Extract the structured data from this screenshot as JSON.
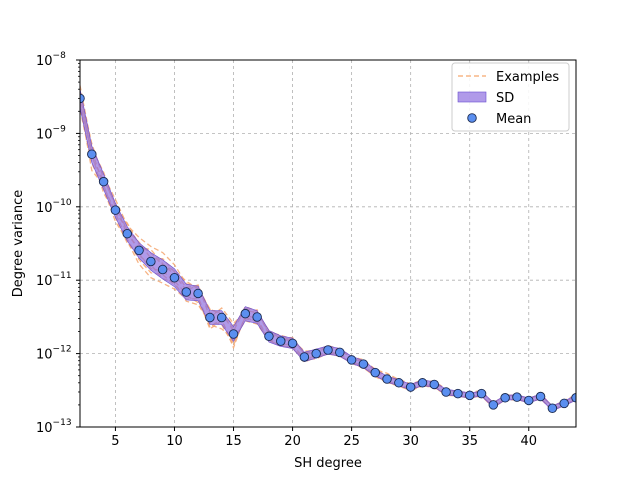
{
  "chart_data": {
    "type": "line",
    "xlabel": "SH degree",
    "ylabel": "Degree variance",
    "xlim": [
      2,
      44
    ],
    "ylim": [
      1e-13,
      1e-08
    ],
    "yscale": "log",
    "grid": true,
    "legend_position": "top-right",
    "x_ticks": [
      5,
      10,
      15,
      20,
      25,
      30,
      35,
      40
    ],
    "y_ticks": [
      {
        "value": 1e-13,
        "base": "10",
        "exp": "−13"
      },
      {
        "value": 1e-12,
        "base": "10",
        "exp": "−12"
      },
      {
        "value": 1e-11,
        "base": "10",
        "exp": "−11"
      },
      {
        "value": 1e-10,
        "base": "10",
        "exp": "−10"
      },
      {
        "value": 1e-09,
        "base": "10",
        "exp": "−9"
      },
      {
        "value": 1e-08,
        "base": "10",
        "exp": "−8"
      }
    ],
    "legend": [
      {
        "label": "Examples",
        "kind": "dashed-line"
      },
      {
        "label": "SD",
        "kind": "band"
      },
      {
        "label": "Mean",
        "kind": "marker"
      }
    ],
    "colors": {
      "examples": "#f5a66e",
      "sd_fill": "#8f6fe0",
      "sd_edge": "#6a4fd0",
      "mean_face": "#5b8ff0",
      "mean_edge": "#1a2a50",
      "grid": "#b0b0b0"
    },
    "x": [
      2,
      3,
      4,
      5,
      6,
      7,
      8,
      9,
      10,
      11,
      12,
      13,
      14,
      15,
      16,
      17,
      18,
      19,
      20,
      21,
      22,
      23,
      24,
      25,
      26,
      27,
      28,
      29,
      30,
      31,
      32,
      33,
      34,
      35,
      36,
      37,
      38,
      39,
      40,
      41,
      42,
      43,
      44
    ],
    "mean": [
      3e-09,
      5.2e-10,
      2.2e-10,
      9e-11,
      4.3e-11,
      2.55e-11,
      1.8e-11,
      1.4e-11,
      1.08e-11,
      6.9e-12,
      6.6e-12,
      3.1e-12,
      3.1e-12,
      1.85e-12,
      3.5e-12,
      3.15e-12,
      1.72e-12,
      1.48e-12,
      1.38e-12,
      9e-13,
      1e-12,
      1.12e-12,
      1.04e-12,
      8.2e-13,
      7.2e-13,
      5.5e-13,
      4.5e-13,
      4e-13,
      3.5e-13,
      4e-13,
      3.8e-13,
      3e-13,
      2.85e-13,
      2.7e-13,
      2.85e-13,
      2e-13,
      2.5e-13,
      2.55e-13,
      2.3e-13,
      2.6e-13,
      1.8e-13,
      2.1e-13,
      2.5e-13
    ],
    "sd_factor": [
      1.35,
      1.3,
      1.28,
      1.25,
      1.25,
      1.27,
      1.32,
      1.35,
      1.33,
      1.28,
      1.26,
      1.24,
      1.24,
      1.26,
      1.25,
      1.22,
      1.2,
      1.18,
      1.18,
      1.16,
      1.15,
      1.14,
      1.13,
      1.12,
      1.12,
      1.1,
      1.1,
      1.1,
      1.09,
      1.09,
      1.09,
      1.09,
      1.09,
      1.08,
      1.08,
      1.08,
      1.08,
      1.08,
      1.08,
      1.08,
      1.08,
      1.08,
      1.08
    ],
    "examples_mult": [
      [
        1.5,
        1.3,
        1.2,
        1.4,
        1.3,
        1.5,
        1.6,
        1.7,
        1.5,
        1.3,
        1.2,
        1.3,
        1.1,
        1.2,
        1.25,
        1.2,
        1.15,
        1.1,
        1.2,
        1.1,
        1.15,
        1.1,
        1.05,
        1.1,
        1.15,
        1.1,
        1.2,
        1.1,
        1.1,
        1.05,
        1.1,
        1.1,
        1.05,
        1.1,
        1.1,
        1.05,
        1.1,
        1.05,
        1.05,
        1.1,
        1.05,
        1.1,
        1.1
      ],
      [
        0.7,
        0.75,
        0.8,
        0.7,
        0.8,
        0.65,
        0.6,
        0.65,
        0.7,
        0.8,
        0.85,
        0.7,
        0.9,
        0.75,
        0.85,
        0.9,
        0.85,
        0.9,
        0.85,
        0.9,
        0.9,
        0.9,
        0.92,
        0.9,
        0.9,
        0.92,
        0.9,
        0.9,
        0.93,
        0.92,
        0.9,
        0.92,
        0.93,
        0.92,
        0.93,
        0.95,
        0.92,
        0.93,
        0.94,
        0.93,
        0.95,
        0.94,
        0.94
      ],
      [
        1.2,
        1.4,
        1.1,
        1.2,
        1.1,
        1.3,
        1.1,
        1.4,
        1.2,
        1.15,
        1.3,
        1.15,
        1.2,
        1.3,
        1.1,
        1.15,
        1.2,
        1.15,
        1.1,
        1.2,
        1.1,
        1.15,
        1.1,
        1.12,
        1.1,
        1.1,
        1.08,
        1.12,
        1.1,
        1.08,
        1.1,
        1.06,
        1.08,
        1.06,
        1.07,
        1.06,
        1.07,
        1.06,
        1.05,
        1.06,
        1.05,
        1.05,
        1.05
      ],
      [
        0.85,
        0.6,
        0.9,
        0.8,
        0.75,
        0.85,
        0.9,
        0.75,
        0.85,
        0.75,
        0.7,
        0.85,
        0.8,
        0.7,
        0.9,
        0.85,
        0.9,
        0.85,
        0.9,
        0.85,
        0.9,
        0.88,
        0.9,
        0.9,
        0.88,
        0.9,
        0.92,
        0.9,
        0.9,
        0.93,
        0.9,
        0.93,
        0.92,
        0.93,
        0.92,
        0.93,
        0.94,
        0.93,
        0.95,
        0.94,
        0.93,
        0.95,
        0.95
      ],
      [
        1.1,
        1.2,
        1.35,
        1.1,
        1.4,
        1.2,
        1.3,
        1.15,
        1.25,
        1.4,
        1.15,
        1.3,
        1.15,
        1.1,
        1.2,
        1.1,
        1.15,
        1.2,
        1.15,
        1.1,
        1.12,
        1.1,
        1.12,
        1.08,
        1.1,
        1.12,
        1.1,
        1.06,
        1.08,
        1.1,
        1.06,
        1.08,
        1.06,
        1.08,
        1.05,
        1.07,
        1.05,
        1.06,
        1.06,
        1.05,
        1.07,
        1.05,
        1.06
      ],
      [
        0.9,
        1.0,
        0.7,
        0.9,
        0.85,
        0.75,
        0.7,
        0.85,
        0.8,
        0.9,
        0.75,
        0.8,
        0.7,
        0.85,
        0.8,
        0.8,
        0.88,
        0.85,
        0.88,
        0.92,
        0.85,
        0.9,
        0.88,
        0.92,
        0.9,
        0.88,
        0.9,
        0.92,
        0.9,
        0.9,
        0.93,
        0.9,
        0.93,
        0.92,
        0.94,
        0.92,
        0.94,
        0.93,
        0.94,
        0.95,
        0.94,
        0.93,
        0.95
      ],
      [
        1.3,
        0.9,
        1.05,
        1.25,
        0.95,
        1.1,
        1.45,
        1.2,
        1.1,
        1.05,
        1.3,
        1.0,
        1.35,
        1.4,
        1.05,
        1.25,
        1.05,
        1.1,
        1.05,
        1.15,
        1.05,
        1.08,
        1.1,
        1.05,
        1.07,
        1.05,
        1.06,
        1.08,
        1.05,
        1.07,
        1.05,
        1.07,
        1.05,
        1.06,
        1.07,
        1.05,
        1.06,
        1.06,
        1.05,
        1.06,
        1.06,
        1.06,
        1.05
      ],
      [
        0.8,
        1.15,
        0.85,
        0.95,
        1.15,
        0.9,
        0.8,
        0.95,
        0.9,
        0.95,
        0.9,
        0.75,
        0.95,
        0.65,
        0.95,
        0.95,
        0.9,
        0.92,
        0.95,
        0.95,
        0.92,
        0.95,
        0.95,
        0.94,
        0.95,
        0.95,
        0.94,
        0.95,
        0.95,
        0.95,
        0.95,
        0.95,
        0.96,
        0.96,
        0.95,
        0.96,
        0.96,
        0.96,
        0.96,
        0.96,
        0.96,
        0.96,
        0.96
      ]
    ]
  }
}
